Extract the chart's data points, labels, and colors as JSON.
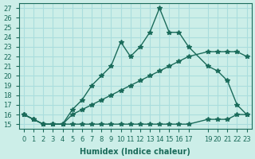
{
  "xlabel": "Humidex (Indice chaleur)",
  "bg_color": "#cceee8",
  "grid_color": "#aadddd",
  "line_color": "#1a6b5a",
  "ylim": [
    14.5,
    27.5
  ],
  "xlim": [
    -0.5,
    23.5
  ],
  "yticks": [
    15,
    16,
    17,
    18,
    19,
    20,
    21,
    22,
    23,
    24,
    25,
    26,
    27
  ],
  "xticks": [
    0,
    1,
    2,
    3,
    4,
    5,
    6,
    7,
    8,
    9,
    10,
    11,
    12,
    13,
    14,
    15,
    16,
    17,
    19,
    20,
    21,
    22,
    23
  ],
  "xtick_labels": [
    "0",
    "1",
    "2",
    "3",
    "4",
    "5",
    "6",
    "7",
    "8",
    "9",
    "10",
    "11",
    "12",
    "13",
    "14",
    "15",
    "16",
    "17",
    "19",
    "20",
    "21",
    "22",
    "23"
  ],
  "curve1_x": [
    0,
    1,
    2,
    3,
    4,
    5,
    6,
    7,
    8,
    9,
    10,
    11,
    12,
    13,
    14,
    15,
    16,
    17,
    19,
    20,
    21,
    22,
    23
  ],
  "curve1_y": [
    16,
    15.5,
    15,
    15,
    15,
    15,
    15,
    15,
    15,
    15,
    15,
    15,
    15,
    15,
    15,
    15,
    15,
    15,
    15.5,
    15.5,
    15.5,
    16,
    16
  ],
  "curve2_x": [
    0,
    1,
    2,
    3,
    4,
    5,
    6,
    7,
    8,
    9,
    10,
    11,
    12,
    13,
    14,
    15,
    16,
    17,
    19,
    20,
    21,
    22,
    23
  ],
  "curve2_y": [
    16,
    15.5,
    15,
    15,
    15,
    16,
    16.5,
    17,
    17.5,
    18,
    18.5,
    19,
    19.5,
    20,
    20.5,
    21,
    21.5,
    22,
    22.5,
    22.5,
    22.5,
    22.5,
    22
  ],
  "curve3_x": [
    0,
    1,
    2,
    3,
    4,
    5,
    6,
    7,
    8,
    9,
    10,
    11,
    12,
    13,
    14,
    15,
    16,
    17,
    19,
    20,
    21,
    22,
    23
  ],
  "curve3_y": [
    16,
    15.5,
    15,
    15,
    15,
    16.5,
    17.5,
    19,
    20,
    21,
    23.5,
    22,
    23,
    24.5,
    27,
    24.5,
    24.5,
    23,
    21,
    20.5,
    19.5,
    17,
    16
  ],
  "marker": "*",
  "markersize": 4
}
